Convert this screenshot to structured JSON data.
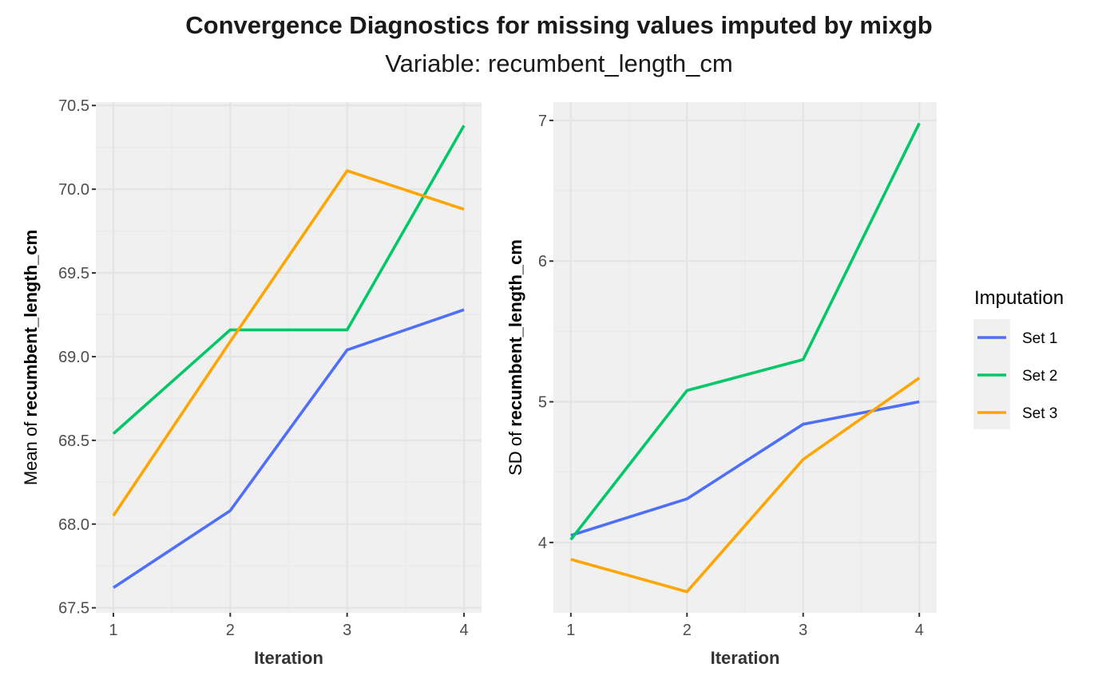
{
  "chart_data": [
    {
      "type": "line",
      "title": "Convergence Diagnostics for missing values imputed by mixgb",
      "subtitle": "Variable: recumbent_length_cm",
      "xlabel": "Iteration",
      "ylabel_prefix": "Mean of ",
      "ylabel_var": "recumbent_length_cm",
      "x": [
        1,
        2,
        3,
        4
      ],
      "xticks": [
        "1",
        "2",
        "3",
        "4"
      ],
      "yticks": [
        67.5,
        68.0,
        68.5,
        69.0,
        69.5,
        70.0,
        70.5
      ],
      "ytick_labels": [
        "67.5",
        "68.0",
        "68.5",
        "69.0",
        "69.5",
        "70.0",
        "70.5"
      ],
      "xlim": [
        0.85,
        4.15
      ],
      "ylim": [
        67.47,
        70.52
      ],
      "grid": true,
      "series": [
        {
          "name": "Set 1",
          "color": "#4E6FF7",
          "values": [
            67.62,
            68.08,
            69.04,
            69.28
          ]
        },
        {
          "name": "Set 2",
          "color": "#00C767",
          "values": [
            68.54,
            69.16,
            69.16,
            70.38
          ]
        },
        {
          "name": "Set 3",
          "color": "#FFA500",
          "values": [
            68.05,
            69.09,
            70.11,
            69.88
          ]
        }
      ]
    },
    {
      "type": "line",
      "xlabel": "Iteration",
      "ylabel_prefix": "SD of ",
      "ylabel_var": "recumbent_length_cm",
      "x": [
        1,
        2,
        3,
        4
      ],
      "xticks": [
        "1",
        "2",
        "3",
        "4"
      ],
      "yticks": [
        4,
        5,
        6,
        7
      ],
      "ytick_labels": [
        "4",
        "5",
        "6",
        "7"
      ],
      "xlim": [
        0.85,
        4.15
      ],
      "ylim": [
        3.5,
        7.13
      ],
      "grid": true,
      "series": [
        {
          "name": "Set 1",
          "color": "#4E6FF7",
          "values": [
            4.05,
            4.31,
            4.84,
            5.0
          ]
        },
        {
          "name": "Set 2",
          "color": "#00C767",
          "values": [
            4.02,
            5.08,
            5.3,
            6.98
          ]
        },
        {
          "name": "Set 3",
          "color": "#FFA500",
          "values": [
            3.88,
            3.65,
            4.59,
            5.17
          ]
        }
      ]
    }
  ],
  "legend": {
    "title": "Imputation",
    "placement": "right",
    "items": [
      {
        "label": "Set 1",
        "color": "#4E6FF7"
      },
      {
        "label": "Set 2",
        "color": "#00C767"
      },
      {
        "label": "Set 3",
        "color": "#FFA500"
      }
    ]
  }
}
